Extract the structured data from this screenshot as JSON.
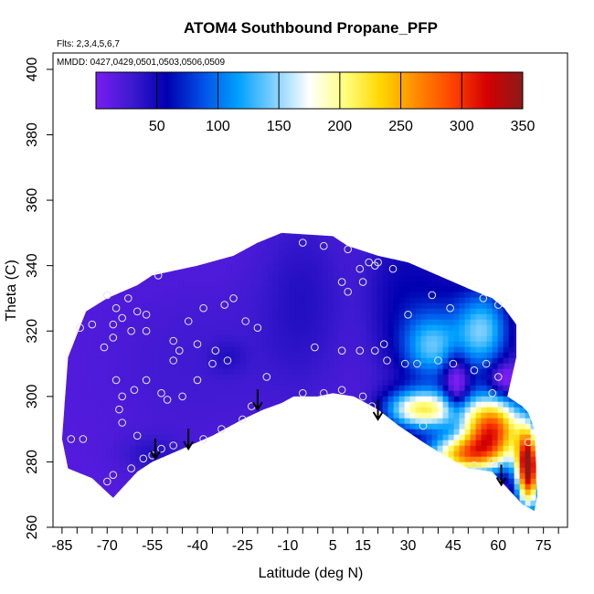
{
  "chart_data": {
    "type": "heatmap",
    "title": "ATOM4 Southbound Propane_PFP",
    "annotations": {
      "flights": "Flts: 2,3,4,5,6,7",
      "dates": "MMDD: 0427,0429,0501,0503,0506,0509"
    },
    "xlabel": "Latitude (deg N)",
    "ylabel": "Theta (C)",
    "xlim": [
      -88,
      83
    ],
    "ylim": [
      260,
      405
    ],
    "x_ticks": [
      -85,
      -70,
      -55,
      -40,
      -25,
      -10,
      5,
      15,
      30,
      45,
      60,
      75
    ],
    "x_minor_ticks": [
      -80,
      -75,
      -65,
      -60,
      -50,
      -45,
      -35,
      -30,
      -20,
      -15,
      -5,
      0,
      10,
      20,
      25,
      35,
      40,
      50,
      55,
      65,
      70,
      80
    ],
    "y_ticks": [
      260,
      280,
      300,
      320,
      340,
      360,
      380,
      400
    ],
    "colorbar": {
      "range": [
        0,
        350
      ],
      "ticks": [
        50,
        100,
        150,
        200,
        250,
        300,
        350
      ],
      "colors": [
        "#7a1cf2",
        "#3d1ad0",
        "#0000b0",
        "#0050e6",
        "#00a0ff",
        "#80d0ff",
        "#ffffff",
        "#ffff80",
        "#ffd700",
        "#ff8c00",
        "#ff4500",
        "#d40000",
        "#8b1a1a"
      ]
    },
    "boundary_top": [
      [
        -85,
        287
      ],
      [
        -83,
        312
      ],
      [
        -77,
        326
      ],
      [
        -70,
        330
      ],
      [
        -60,
        334
      ],
      [
        -55,
        337
      ],
      [
        -40,
        340
      ],
      [
        -28,
        343
      ],
      [
        -20,
        347
      ],
      [
        -12,
        350
      ],
      [
        5,
        349
      ],
      [
        10,
        346
      ],
      [
        20,
        343
      ],
      [
        30,
        341
      ],
      [
        40,
        337
      ],
      [
        50,
        333
      ],
      [
        58,
        330
      ],
      [
        62,
        327
      ],
      [
        66,
        322
      ],
      [
        66,
        312
      ],
      [
        63,
        300
      ],
      [
        68,
        297
      ],
      [
        70,
        295
      ],
      [
        72,
        290
      ],
      [
        73,
        270
      ],
      [
        72,
        265
      ]
    ],
    "boundary_bottom": [
      [
        -85,
        287
      ],
      [
        -83,
        278
      ],
      [
        -75,
        275
      ],
      [
        -68,
        269
      ],
      [
        -65,
        272
      ],
      [
        -60,
        277
      ],
      [
        -55,
        280
      ],
      [
        -50,
        282
      ],
      [
        -45,
        284
      ],
      [
        -35,
        288
      ],
      [
        -25,
        293
      ],
      [
        -18,
        296
      ],
      [
        -12,
        298
      ],
      [
        -8,
        300
      ],
      [
        0,
        300
      ],
      [
        5,
        301
      ],
      [
        12,
        300
      ],
      [
        20,
        296
      ],
      [
        27,
        291
      ],
      [
        35,
        286
      ],
      [
        42,
        282
      ],
      [
        50,
        278
      ],
      [
        58,
        277
      ],
      [
        64,
        271
      ],
      [
        68,
        267
      ],
      [
        72,
        265
      ]
    ],
    "arrows": [
      {
        "lat": -54,
        "theta": 281
      },
      {
        "lat": -43,
        "theta": 284
      },
      {
        "lat": -20,
        "theta": 296
      },
      {
        "lat": 20,
        "theta": 293
      },
      {
        "lat": 61,
        "theta": 273
      }
    ],
    "sample_points": [
      [
        -70,
        274
      ],
      [
        -68,
        276
      ],
      [
        -62,
        278
      ],
      [
        -58,
        281
      ],
      [
        -55,
        282
      ],
      [
        -52,
        284
      ],
      [
        -48,
        285
      ],
      [
        -38,
        287
      ],
      [
        -32,
        290
      ],
      [
        -25,
        293
      ],
      [
        -22,
        297
      ],
      [
        -60,
        288
      ],
      [
        -65,
        292
      ],
      [
        -66,
        296
      ],
      [
        -65,
        300
      ],
      [
        -61,
        302
      ],
      [
        -67,
        305
      ],
      [
        -57,
        305
      ],
      [
        -52,
        301
      ],
      [
        -50,
        299
      ],
      [
        -45,
        300
      ],
      [
        -40,
        305
      ],
      [
        -35,
        310
      ],
      [
        -30,
        311
      ],
      [
        -48,
        311
      ],
      [
        -46,
        314
      ],
      [
        -48,
        317
      ],
      [
        -40,
        316
      ],
      [
        -34,
        314
      ],
      [
        -43,
        323
      ],
      [
        -57,
        320
      ],
      [
        -62,
        320
      ],
      [
        -68,
        318
      ],
      [
        -68,
        322
      ],
      [
        -65,
        324
      ],
      [
        -67,
        327
      ],
      [
        -70,
        331
      ],
      [
        -63,
        330
      ],
      [
        -60,
        326
      ],
      [
        -57,
        325
      ],
      [
        -53,
        337
      ],
      [
        -38,
        327
      ],
      [
        -31,
        328
      ],
      [
        -28,
        330
      ],
      [
        -24,
        323
      ],
      [
        -20,
        321
      ],
      [
        -17,
        306
      ],
      [
        -5,
        301
      ],
      [
        2,
        301
      ],
      [
        8,
        302
      ],
      [
        15,
        300
      ],
      [
        18,
        297
      ],
      [
        -1,
        315
      ],
      [
        8,
        314
      ],
      [
        14,
        314
      ],
      [
        19,
        314
      ],
      [
        8,
        335
      ],
      [
        10,
        332
      ],
      [
        14,
        339
      ],
      [
        15,
        335
      ],
      [
        17,
        341
      ],
      [
        19,
        340
      ],
      [
        20,
        341
      ],
      [
        25,
        339
      ],
      [
        2,
        346
      ],
      [
        -5,
        347
      ],
      [
        22,
        316
      ],
      [
        23,
        311
      ],
      [
        29,
        310
      ],
      [
        33,
        310
      ],
      [
        40,
        311
      ],
      [
        45,
        310
      ],
      [
        52,
        308
      ],
      [
        56,
        310
      ],
      [
        60,
        306
      ],
      [
        58,
        301
      ],
      [
        35,
        291
      ],
      [
        52,
        279
      ],
      [
        58,
        280
      ],
      [
        70,
        286
      ],
      [
        10,
        345
      ],
      [
        30,
        325
      ],
      [
        38,
        331
      ],
      [
        44,
        327
      ],
      [
        55,
        330
      ],
      [
        60,
        328
      ],
      [
        -82,
        287
      ],
      [
        -78,
        287
      ],
      [
        -79,
        321
      ],
      [
        -75,
        322
      ],
      [
        -71,
        315
      ]
    ]
  }
}
